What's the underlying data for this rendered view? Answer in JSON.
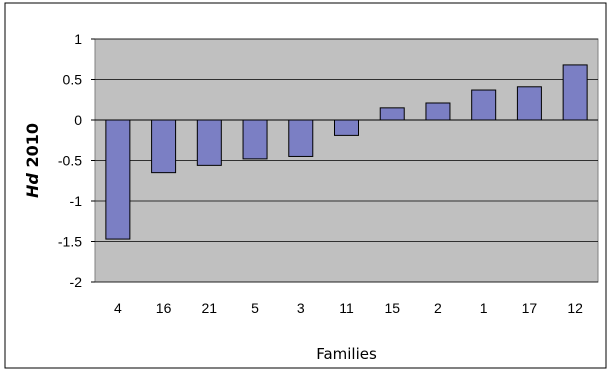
{
  "chart_data": {
    "type": "bar",
    "title": "",
    "xlabel": "Families",
    "ylabel_italic": "Hd",
    "ylabel_rest": "2010",
    "categories": [
      "4",
      "16",
      "21",
      "5",
      "3",
      "11",
      "15",
      "2",
      "1",
      "17",
      "12"
    ],
    "values": [
      -1.47,
      -0.65,
      -0.56,
      -0.48,
      -0.45,
      -0.19,
      0.15,
      0.21,
      0.37,
      0.41,
      0.68
    ],
    "ylim": [
      -2,
      1
    ],
    "yticks": [
      1,
      0.5,
      0,
      -0.5,
      -1,
      -1.5,
      -2
    ],
    "ytick_labels": [
      "1",
      "0.5",
      "0",
      "-0.5",
      "-1",
      "-1.5",
      "-2"
    ],
    "grid": true,
    "legend": false,
    "colors": {
      "bar_fill": "#7b7fc4",
      "bar_stroke": "#000000",
      "plot_bg": "#c0c0c0",
      "grid": "#000000"
    }
  }
}
